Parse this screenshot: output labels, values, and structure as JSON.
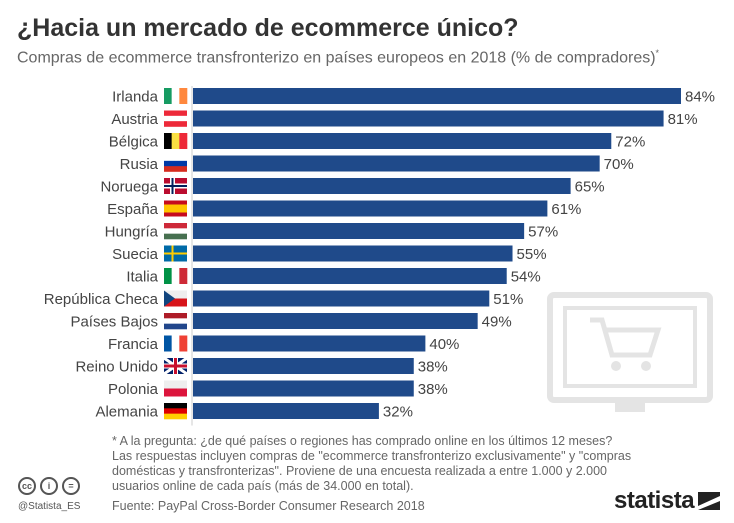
{
  "chart_data": {
    "type": "bar",
    "title": "¿Hacia un mercado de ecommerce único?",
    "subtitle": "Compras de ecommerce transfronterizo en países europeos en 2018 (% de compradores)",
    "subtitle_mark": "*",
    "categories": [
      "Irlanda",
      "Austria",
      "Bélgica",
      "Rusia",
      "Noruega",
      "España",
      "Hungría",
      "Suecia",
      "Italia",
      "República Checa",
      "Países Bajos",
      "Francia",
      "Reino Unido",
      "Polonia",
      "Alemania"
    ],
    "values": [
      84,
      81,
      72,
      70,
      65,
      61,
      57,
      55,
      54,
      51,
      49,
      40,
      38,
      38,
      32
    ],
    "labels": [
      "84%",
      "81%",
      "72%",
      "70%",
      "65%",
      "61%",
      "57%",
      "55%",
      "54%",
      "51%",
      "49%",
      "40%",
      "38%",
      "38%",
      "32%"
    ],
    "xlim": [
      0,
      100
    ],
    "orientation": "horizontal",
    "bar_color": "#1f4a8a"
  },
  "footer": {
    "note": "* A la pregunta: ¿de qué países o regiones has comprado online en los últimos 12 meses? Las respuestas incluyen compras de \"ecommerce transfronterizo exclusivamente\" y \"compras domésticas y transfronterizas\". Proviene de una encuesta realizada a entre 1.000 y 2.000 usuarios online de cada país (más de 34.000 en total).",
    "source": "Fuente: PayPal Cross-Border Consumer Research 2018",
    "handle": "@Statista_ES",
    "cc": [
      "cc",
      "i",
      "="
    ],
    "logo": "statista"
  }
}
